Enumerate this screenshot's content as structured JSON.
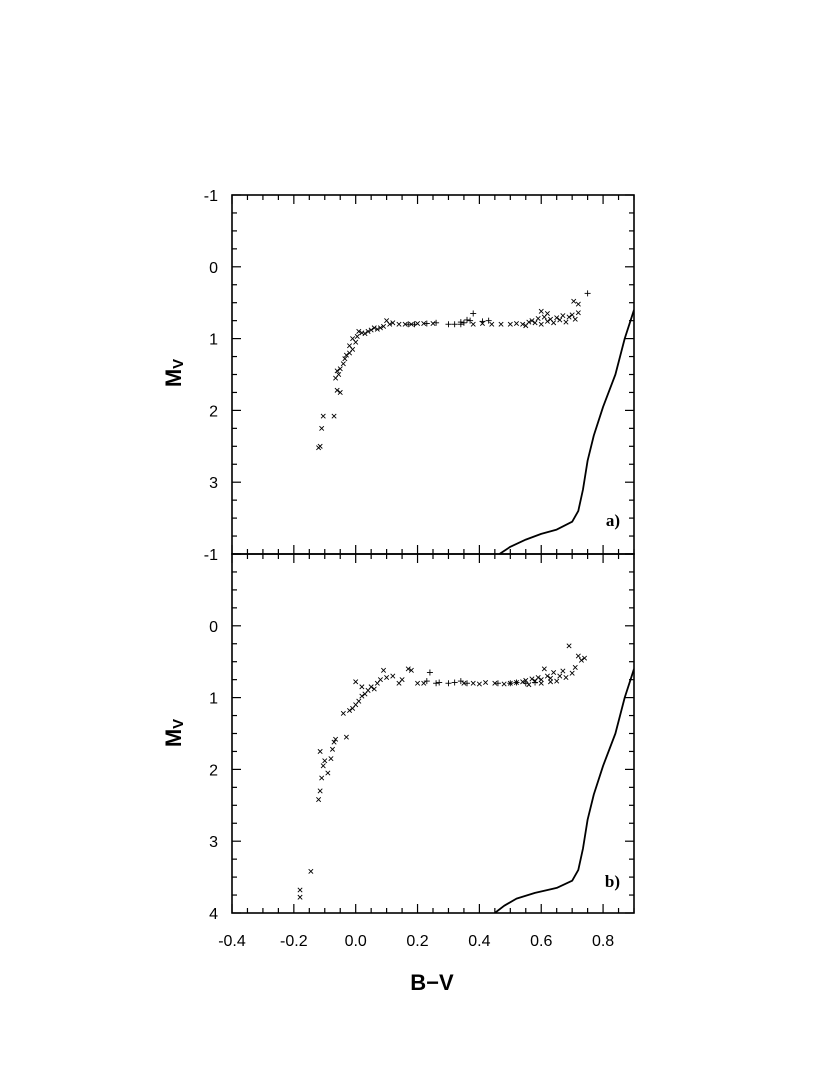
{
  "chart_data": [
    {
      "type": "scatter",
      "panel_label": "a)",
      "xlabel": "B−V",
      "ylabel": "M",
      "ylabel_sub": "V",
      "xlim": [
        -0.4,
        0.9
      ],
      "ylim": [
        4,
        -1
      ],
      "y_ticks": [
        -1,
        0,
        1,
        2,
        3
      ],
      "y_tick_labels": [
        "-1",
        "0",
        "1",
        "2",
        "3"
      ],
      "series": [
        {
          "marker": "x",
          "points": [
            [
              -0.12,
              2.52
            ],
            [
              -0.115,
              2.5
            ],
            [
              -0.11,
              2.25
            ],
            [
              -0.105,
              2.08
            ],
            [
              -0.07,
              2.08
            ],
            [
              -0.06,
              1.72
            ],
            [
              -0.05,
              1.75
            ],
            [
              -0.065,
              1.55
            ],
            [
              -0.055,
              1.5
            ],
            [
              -0.06,
              1.45
            ],
            [
              -0.05,
              1.42
            ],
            [
              -0.04,
              1.35
            ],
            [
              -0.035,
              1.28
            ],
            [
              -0.02,
              1.2
            ],
            [
              -0.01,
              1.15
            ],
            [
              -0.03,
              1.23
            ],
            [
              -0.02,
              1.1
            ],
            [
              0.0,
              1.05
            ],
            [
              -0.01,
              1.0
            ],
            [
              0.005,
              0.97
            ],
            [
              0.01,
              0.9
            ],
            [
              0.02,
              0.92
            ],
            [
              0.03,
              0.93
            ],
            [
              0.04,
              0.9
            ],
            [
              0.05,
              0.88
            ],
            [
              0.06,
              0.85
            ],
            [
              0.07,
              0.87
            ],
            [
              0.08,
              0.85
            ],
            [
              0.09,
              0.83
            ],
            [
              0.1,
              0.75
            ],
            [
              0.11,
              0.8
            ],
            [
              0.12,
              0.78
            ],
            [
              0.14,
              0.8
            ],
            [
              0.16,
              0.8
            ],
            [
              0.18,
              0.8
            ],
            [
              0.2,
              0.79
            ],
            [
              0.22,
              0.79
            ],
            [
              0.25,
              0.79
            ],
            [
              0.38,
              0.8
            ],
            [
              0.41,
              0.79
            ],
            [
              0.44,
              0.8
            ],
            [
              0.47,
              0.8
            ],
            [
              0.5,
              0.8
            ],
            [
              0.52,
              0.79
            ],
            [
              0.54,
              0.8
            ],
            [
              0.56,
              0.77
            ],
            [
              0.58,
              0.78
            ],
            [
              0.59,
              0.72
            ],
            [
              0.6,
              0.8
            ],
            [
              0.61,
              0.7
            ],
            [
              0.62,
              0.76
            ],
            [
              0.63,
              0.73
            ],
            [
              0.64,
              0.78
            ],
            [
              0.65,
              0.71
            ],
            [
              0.66,
              0.74
            ],
            [
              0.67,
              0.68
            ],
            [
              0.68,
              0.77
            ],
            [
              0.69,
              0.7
            ],
            [
              0.7,
              0.67
            ],
            [
              0.71,
              0.73
            ],
            [
              0.72,
              0.64
            ],
            [
              0.72,
              0.52
            ],
            [
              0.705,
              0.48
            ],
            [
              0.6,
              0.62
            ],
            [
              0.62,
              0.65
            ],
            [
              0.57,
              0.75
            ],
            [
              0.55,
              0.82
            ]
          ]
        },
        {
          "marker": "+",
          "points": [
            [
              0.17,
              0.8
            ],
            [
              0.19,
              0.8
            ],
            [
              0.23,
              0.79
            ],
            [
              0.26,
              0.78
            ],
            [
              0.3,
              0.8
            ],
            [
              0.32,
              0.8
            ],
            [
              0.34,
              0.77
            ],
            [
              0.35,
              0.78
            ],
            [
              0.36,
              0.74
            ],
            [
              0.37,
              0.75
            ],
            [
              0.38,
              0.65
            ],
            [
              0.34,
              0.8
            ],
            [
              0.41,
              0.76
            ],
            [
              0.43,
              0.75
            ],
            [
              0.75,
              0.37
            ]
          ]
        },
        {
          "marker": "line",
          "points": [
            [
              0.465,
              4.0
            ],
            [
              0.5,
              3.9
            ],
            [
              0.55,
              3.8
            ],
            [
              0.6,
              3.72
            ],
            [
              0.65,
              3.66
            ],
            [
              0.7,
              3.55
            ],
            [
              0.72,
              3.4
            ],
            [
              0.735,
              3.1
            ],
            [
              0.75,
              2.7
            ],
            [
              0.77,
              2.35
            ],
            [
              0.8,
              1.95
            ],
            [
              0.84,
              1.5
            ],
            [
              0.87,
              1.0
            ],
            [
              0.9,
              0.6
            ]
          ]
        }
      ]
    },
    {
      "type": "scatter",
      "panel_label": "b)",
      "xlabel": "B−V",
      "ylabel": "M",
      "ylabel_sub": "V",
      "xlim": [
        -0.4,
        0.9
      ],
      "ylim": [
        4,
        -1
      ],
      "x_ticks": [
        -0.4,
        -0.2,
        0.0,
        0.2,
        0.4,
        0.6,
        0.8
      ],
      "x_tick_labels": [
        "-0.4",
        "-0.2",
        "0.0",
        "0.2",
        "0.4",
        "0.6",
        "0.8"
      ],
      "y_ticks": [
        -1,
        0,
        1,
        2,
        3,
        4
      ],
      "y_tick_labels": [
        "-1",
        "0",
        "1",
        "2",
        "3",
        "4"
      ],
      "series": [
        {
          "marker": "x",
          "points": [
            [
              -0.18,
              3.68
            ],
            [
              -0.18,
              3.78
            ],
            [
              -0.145,
              3.42
            ],
            [
              -0.12,
              2.42
            ],
            [
              -0.115,
              2.3
            ],
            [
              -0.11,
              2.12
            ],
            [
              -0.105,
              1.95
            ],
            [
              -0.1,
              1.88
            ],
            [
              -0.115,
              1.75
            ],
            [
              -0.09,
              2.05
            ],
            [
              -0.08,
              1.85
            ],
            [
              -0.075,
              1.72
            ],
            [
              -0.07,
              1.62
            ],
            [
              -0.065,
              1.58
            ],
            [
              -0.03,
              1.55
            ],
            [
              -0.04,
              1.22
            ],
            [
              -0.02,
              1.18
            ],
            [
              -0.01,
              1.15
            ],
            [
              0.0,
              1.1
            ],
            [
              0.01,
              1.05
            ],
            [
              0.02,
              0.98
            ],
            [
              0.03,
              0.95
            ],
            [
              0.04,
              0.9
            ],
            [
              0.05,
              0.85
            ],
            [
              0.06,
              0.88
            ],
            [
              0.07,
              0.8
            ],
            [
              0.08,
              0.75
            ],
            [
              0.09,
              0.62
            ],
            [
              0.1,
              0.72
            ],
            [
              0.12,
              0.7
            ],
            [
              0.14,
              0.8
            ],
            [
              0.15,
              0.75
            ],
            [
              0.17,
              0.6
            ],
            [
              0.18,
              0.62
            ],
            [
              0.2,
              0.8
            ],
            [
              0.22,
              0.8
            ],
            [
              0.0,
              0.78
            ],
            [
              0.02,
              0.85
            ],
            [
              0.35,
              0.8
            ],
            [
              0.38,
              0.8
            ],
            [
              0.4,
              0.81
            ],
            [
              0.42,
              0.79
            ],
            [
              0.45,
              0.8
            ],
            [
              0.48,
              0.81
            ],
            [
              0.5,
              0.8
            ],
            [
              0.52,
              0.79
            ],
            [
              0.54,
              0.78
            ],
            [
              0.55,
              0.76
            ],
            [
              0.57,
              0.74
            ],
            [
              0.58,
              0.77
            ],
            [
              0.59,
              0.72
            ],
            [
              0.6,
              0.75
            ],
            [
              0.61,
              0.6
            ],
            [
              0.62,
              0.7
            ],
            [
              0.63,
              0.73
            ],
            [
              0.64,
              0.65
            ],
            [
              0.65,
              0.77
            ],
            [
              0.66,
              0.7
            ],
            [
              0.67,
              0.63
            ],
            [
              0.68,
              0.72
            ],
            [
              0.69,
              0.28
            ],
            [
              0.7,
              0.66
            ],
            [
              0.71,
              0.58
            ],
            [
              0.72,
              0.42
            ],
            [
              0.73,
              0.48
            ],
            [
              0.74,
              0.45
            ],
            [
              0.56,
              0.82
            ],
            [
              0.6,
              0.8
            ],
            [
              0.63,
              0.78
            ]
          ]
        },
        {
          "marker": "+",
          "points": [
            [
              0.23,
              0.77
            ],
            [
              0.24,
              0.65
            ],
            [
              0.27,
              0.79
            ],
            [
              0.3,
              0.8
            ],
            [
              0.32,
              0.79
            ],
            [
              0.34,
              0.77
            ],
            [
              0.36,
              0.8
            ],
            [
              0.46,
              0.8
            ],
            [
              0.5,
              0.8
            ],
            [
              0.52,
              0.79
            ],
            [
              0.55,
              0.8
            ],
            [
              0.58,
              0.79
            ],
            [
              0.26,
              0.8
            ]
          ]
        },
        {
          "marker": "line",
          "points": [
            [
              0.45,
              4.0
            ],
            [
              0.48,
              3.9
            ],
            [
              0.52,
              3.8
            ],
            [
              0.58,
              3.72
            ],
            [
              0.65,
              3.65
            ],
            [
              0.7,
              3.55
            ],
            [
              0.72,
              3.4
            ],
            [
              0.735,
              3.1
            ],
            [
              0.75,
              2.7
            ],
            [
              0.77,
              2.35
            ],
            [
              0.8,
              1.95
            ],
            [
              0.84,
              1.5
            ],
            [
              0.87,
              1.0
            ],
            [
              0.9,
              0.6
            ]
          ]
        }
      ]
    }
  ]
}
